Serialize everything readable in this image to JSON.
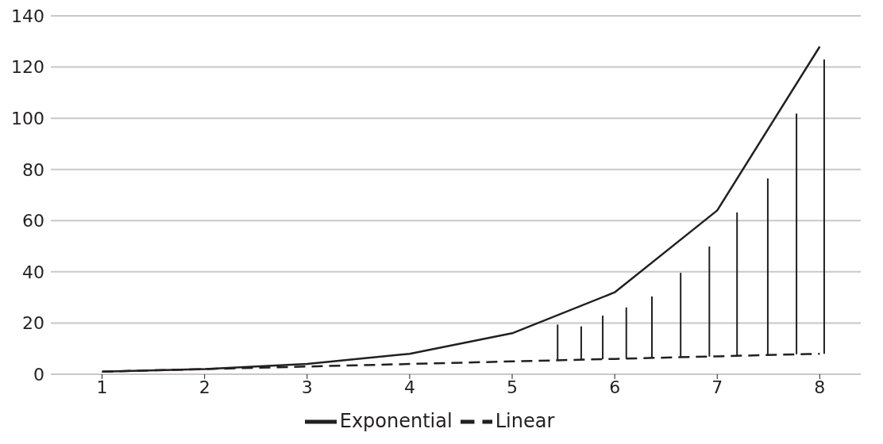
{
  "chart_data": {
    "type": "line",
    "xlim": [
      0.5,
      8.4
    ],
    "xticks": [
      1,
      2,
      3,
      4,
      5,
      6,
      7,
      8
    ],
    "ylim": [
      0,
      140
    ],
    "yticks": [
      0,
      20,
      40,
      60,
      80,
      100,
      120,
      140
    ],
    "grid": "y",
    "legend": "bottom",
    "marker": "none",
    "series": [
      {
        "name": "Linear",
        "color": "#231f20",
        "line_style": "dashed",
        "x": [
          1,
          2,
          3,
          4,
          5,
          6,
          7,
          8
        ],
        "values": [
          1,
          2,
          3,
          4,
          5,
          6,
          7,
          8
        ]
      },
      {
        "name": "Exponential",
        "color": "#231f20",
        "line_style": "solid",
        "x": [
          1,
          2,
          3,
          4,
          5,
          6,
          7,
          8
        ],
        "values": [
          1,
          2,
          4,
          8,
          16,
          32,
          64,
          128
        ]
      },
      {
        "type": "bar",
        "color": "#231f20",
        "x": [
          5.44,
          5.67,
          5.88,
          6.11,
          6.36,
          6.64,
          6.92,
          7.19,
          7.49,
          7.77,
          8.04
        ],
        "base": [
          5.4,
          5.7,
          5.9,
          6.1,
          6.4,
          6.6,
          6.9,
          7.2,
          7.5,
          7.8,
          8.0
        ],
        "values": [
          14,
          13,
          17,
          20,
          24,
          33,
          43,
          56,
          69,
          94,
          115
        ]
      }
    ]
  }
}
